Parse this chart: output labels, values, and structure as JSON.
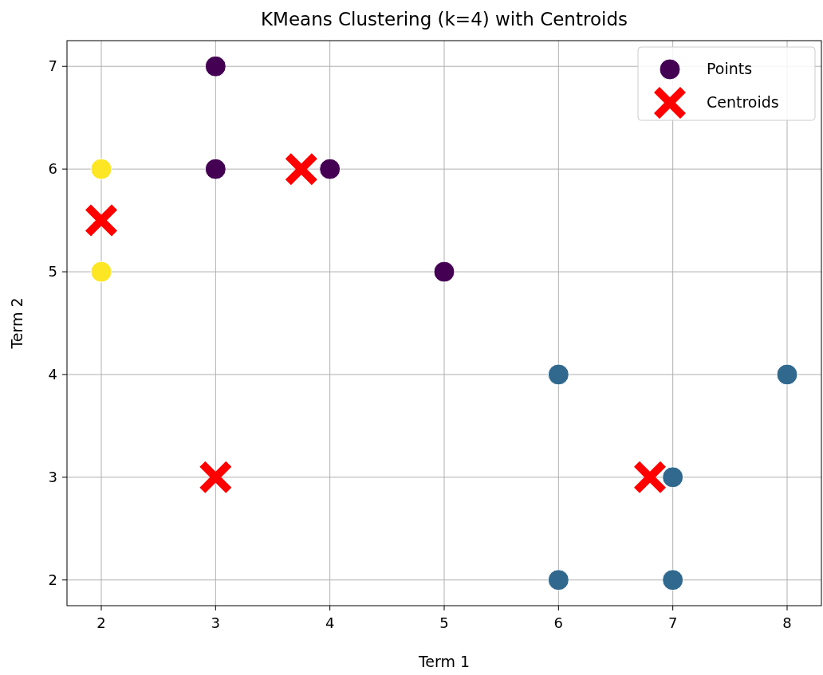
{
  "chart_data": {
    "type": "scatter",
    "title": "KMeans Clustering (k=4) with Centroids",
    "xlabel": "Term 1",
    "ylabel": "Term 2",
    "xlim": [
      1.7,
      8.3
    ],
    "ylim": [
      1.75,
      7.25
    ],
    "xticks": [
      2,
      3,
      4,
      5,
      6,
      7,
      8
    ],
    "yticks": [
      2,
      3,
      4,
      5,
      6,
      7
    ],
    "grid": true,
    "legend": "top right",
    "series": [
      {
        "name": "Points",
        "marker": "circle",
        "x": [
          3,
          3,
          4,
          5,
          2,
          2,
          6,
          8,
          7,
          6,
          7
        ],
        "values": [
          7,
          6,
          6,
          5,
          6,
          5,
          4,
          4,
          3,
          2,
          2
        ],
        "colors": [
          "#440154",
          "#440154",
          "#440154",
          "#440154",
          "#fde725",
          "#fde725",
          "#31688e",
          "#31688e",
          "#31688e",
          "#31688e",
          "#31688e"
        ]
      },
      {
        "name": "Centroids",
        "marker": "cross",
        "color": "#ff0000",
        "x": [
          3.75,
          2,
          3,
          6.8
        ],
        "values": [
          6,
          5.5,
          3,
          3
        ]
      }
    ]
  }
}
